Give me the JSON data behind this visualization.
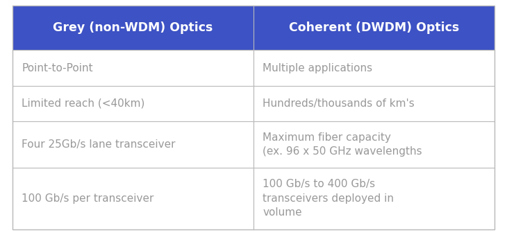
{
  "header": [
    "Grey (non-WDM) Optics",
    "Coherent (DWDM) Optics"
  ],
  "rows": [
    [
      "Point-to-Point",
      "Multiple applications"
    ],
    [
      "Limited reach (<40km)",
      "Hundreds/thousands of km's"
    ],
    [
      "Four 25Gb/s lane transceiver",
      "Maximum fiber capacity\n(ex. 96 x 50 GHz wavelengths"
    ],
    [
      "100 Gb/s per transceiver",
      "100 Gb/s to 400 Gb/s\ntransceivers deployed in\nvolume"
    ]
  ],
  "header_bg_color": "#3d52c4",
  "header_text_color": "#ffffff",
  "cell_bg_color": "#ffffff",
  "cell_text_color": "#999999",
  "grid_color": "#bbbbbb",
  "border_color": "#bbbbbb",
  "header_fontsize": 12.5,
  "cell_fontsize": 11.0,
  "figsize": [
    7.3,
    3.39
  ],
  "dpi": 100,
  "background_color": "#ffffff"
}
